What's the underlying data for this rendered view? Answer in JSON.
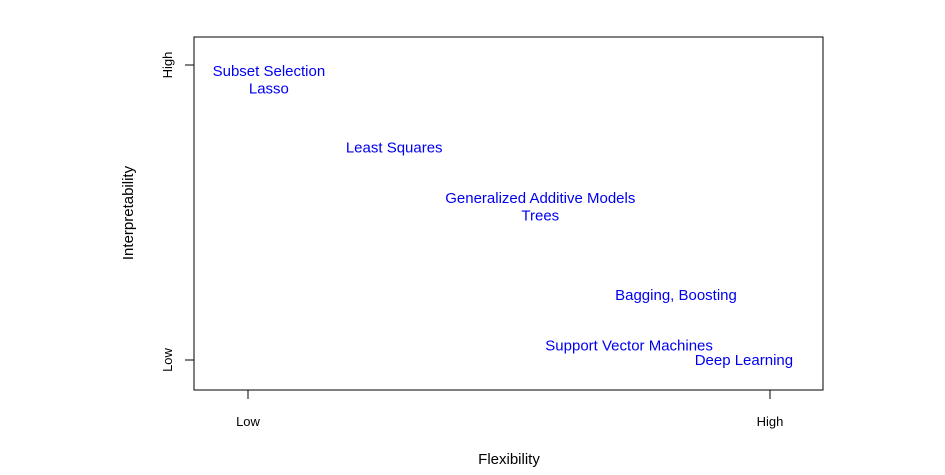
{
  "chart_data": {
    "type": "scatter",
    "title": "",
    "xlabel": "Flexibility",
    "ylabel": "Interpretability",
    "xlim": [
      -0.1,
      1.1
    ],
    "ylim": [
      -0.1,
      1.1
    ],
    "grid": false,
    "x_ticks": [
      {
        "value": 0,
        "label": "Low"
      },
      {
        "value": 1,
        "label": "High"
      }
    ],
    "y_ticks": [
      {
        "value": 0,
        "label": "Low"
      },
      {
        "value": 1,
        "label": "High"
      }
    ],
    "label_color": "#0000ee",
    "points": [
      {
        "label": "Subset Selection",
        "x": 0.04,
        "y": 0.98
      },
      {
        "label": "Lasso",
        "x": 0.04,
        "y": 0.92
      },
      {
        "label": "Least Squares",
        "x": 0.28,
        "y": 0.72
      },
      {
        "label": "Generalized Additive Models",
        "x": 0.56,
        "y": 0.55
      },
      {
        "label": "Trees",
        "x": 0.56,
        "y": 0.49
      },
      {
        "label": "Bagging, Boosting",
        "x": 0.82,
        "y": 0.22
      },
      {
        "label": "Support Vector Machines",
        "x": 0.73,
        "y": 0.05
      },
      {
        "label": "Deep Learning",
        "x": 0.95,
        "y": 0.0
      }
    ]
  }
}
